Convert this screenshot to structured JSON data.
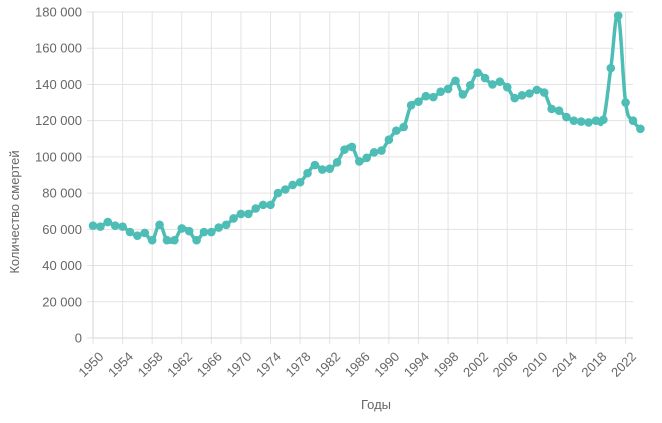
{
  "chart_data": {
    "type": "line",
    "title": "",
    "xlabel": "Годы",
    "ylabel": "Количество смертей",
    "xlim": [
      1950,
      2023
    ],
    "ylim": [
      0,
      180000
    ],
    "y_ticks": [
      0,
      20000,
      40000,
      60000,
      80000,
      100000,
      120000,
      140000,
      160000,
      180000
    ],
    "y_tick_labels": [
      "0",
      "20 000",
      "40 000",
      "60 000",
      "80 000",
      "100 000",
      "120 000",
      "140 000",
      "160 000",
      "180 000"
    ],
    "x_ticks": [
      1950,
      1954,
      1958,
      1962,
      1966,
      1970,
      1974,
      1978,
      1982,
      1986,
      1990,
      1994,
      1998,
      2002,
      2006,
      2010,
      2014,
      2018,
      2022
    ],
    "x_tick_labels": [
      "1950",
      "1954",
      "1958",
      "1962",
      "1966",
      "1970",
      "1974",
      "1978",
      "1982",
      "1986",
      "1990",
      "1994",
      "1998",
      "2002",
      "2006",
      "2010",
      "2014",
      "2018",
      "2022"
    ],
    "grid": true,
    "series": [
      {
        "color": "#4dbdb5",
        "x": [
          1950,
          1951,
          1952,
          1953,
          1954,
          1955,
          1956,
          1957,
          1958,
          1959,
          1960,
          1961,
          1962,
          1963,
          1964,
          1965,
          1966,
          1967,
          1968,
          1969,
          1970,
          1971,
          1972,
          1973,
          1974,
          1975,
          1976,
          1977,
          1978,
          1979,
          1980,
          1981,
          1982,
          1983,
          1984,
          1985,
          1986,
          1987,
          1988,
          1989,
          1990,
          1991,
          1992,
          1993,
          1994,
          1995,
          1996,
          1997,
          1998,
          1999,
          2000,
          2001,
          2002,
          2003,
          2004,
          2005,
          2006,
          2007,
          2008,
          2009,
          2010,
          2011,
          2012,
          2013,
          2014,
          2015,
          2016,
          2017,
          2018,
          2019,
          2020,
          2021,
          2022,
          2023,
          2024
        ],
        "values": [
          62000,
          61500,
          64000,
          62000,
          61500,
          58500,
          56500,
          58000,
          54000,
          62500,
          54000,
          54000,
          60500,
          59000,
          54000,
          58500,
          58500,
          61000,
          62500,
          66000,
          68500,
          68500,
          71500,
          73500,
          73500,
          80000,
          82000,
          84500,
          86000,
          91000,
          95500,
          93000,
          93500,
          97000,
          104000,
          105500,
          97500,
          99500,
          102500,
          103500,
          109500,
          114500,
          116500,
          128500,
          130500,
          133500,
          133000,
          136000,
          137500,
          142000,
          134500,
          139500,
          146500,
          143500,
          140000,
          141500,
          138500,
          132500,
          134000,
          135000,
          137000,
          135500,
          126500,
          125500,
          122000,
          120000,
          119500,
          119000,
          120000,
          120500,
          149000,
          178000,
          130000,
          120000,
          115500
        ]
      }
    ]
  }
}
